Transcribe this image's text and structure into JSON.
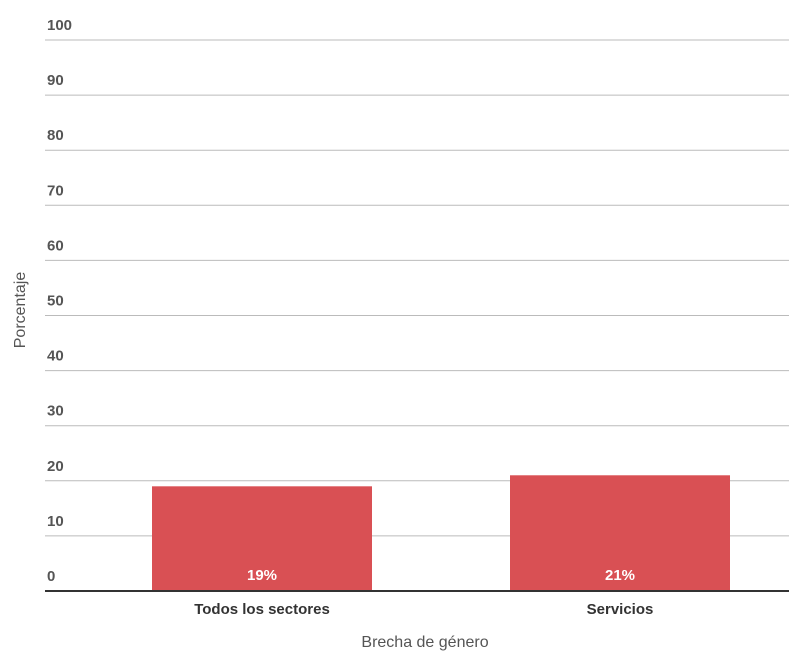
{
  "chart_data": {
    "type": "bar",
    "categories": [
      "Todos los sectores",
      "Servicios"
    ],
    "values": [
      19,
      21
    ],
    "value_labels": [
      "19%",
      "21%"
    ],
    "color": "#d95054",
    "xlabel": "Brecha de género",
    "ylabel": "Porcentaje",
    "ylim": [
      0,
      100
    ],
    "yticks": [
      0,
      10,
      20,
      30,
      40,
      50,
      60,
      70,
      80,
      90,
      100
    ],
    "grid": true
  }
}
